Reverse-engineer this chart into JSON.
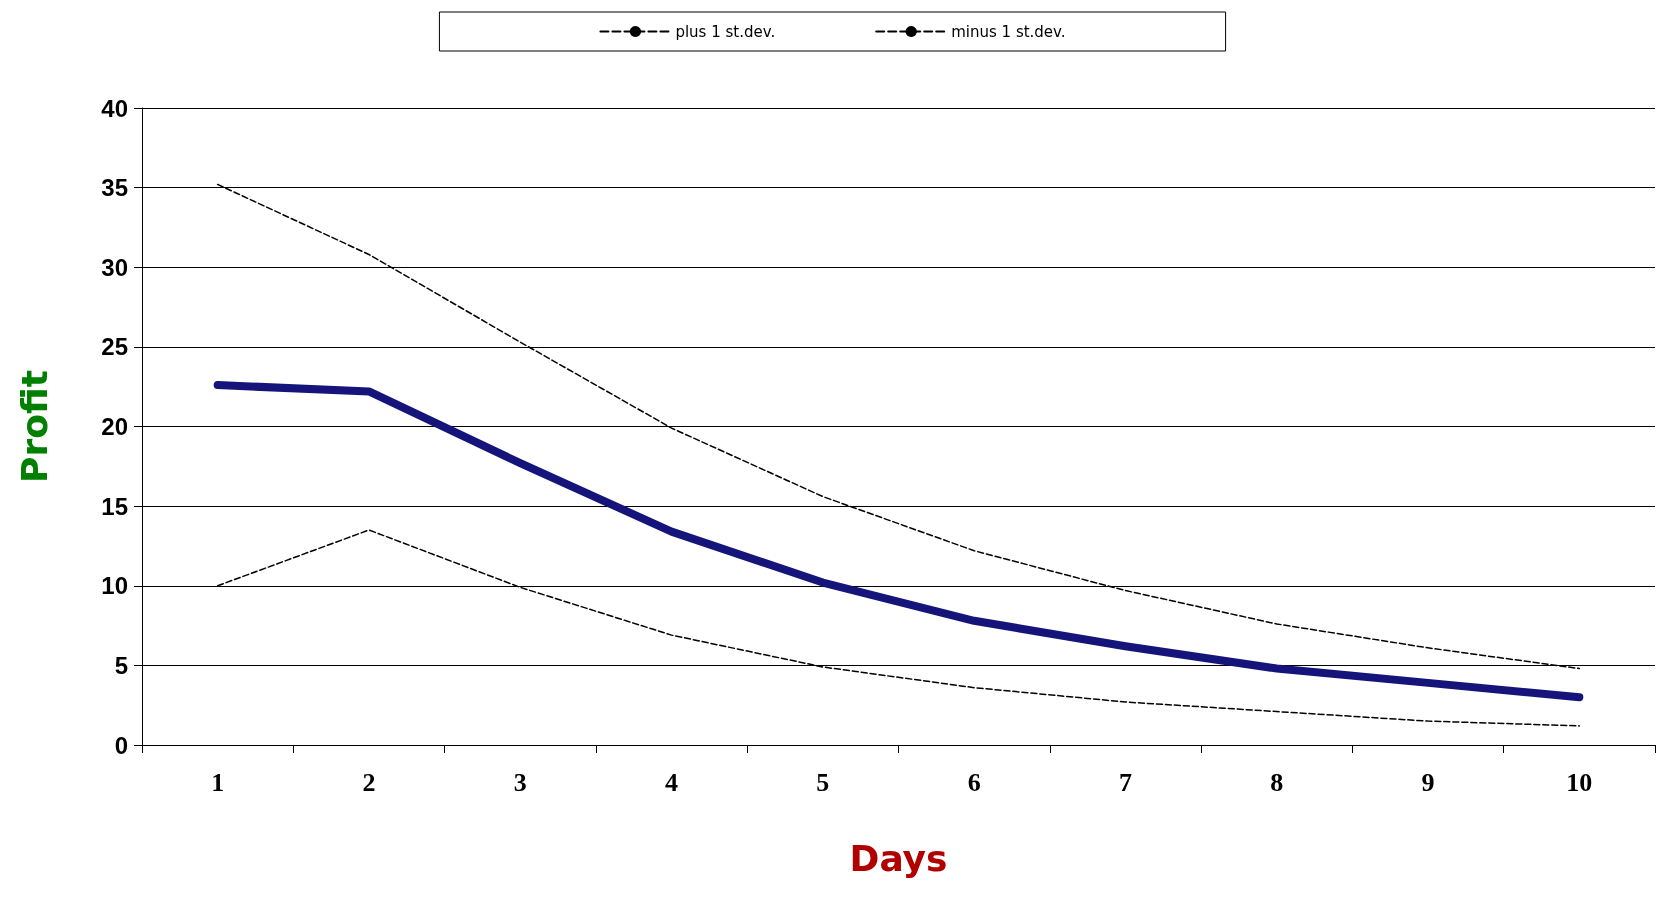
{
  "chart_data": {
    "type": "line",
    "xlabel": "Days",
    "ylabel": "Profit",
    "categories": [
      "1",
      "2",
      "3",
      "4",
      "5",
      "6",
      "7",
      "8",
      "9",
      "10"
    ],
    "series": [
      {
        "color": "#14147a",
        "values": [
          22.6,
          22.2,
          17.7,
          13.4,
          10.2,
          7.8,
          6.2,
          4.8,
          3.9,
          3.0
        ]
      },
      {
        "name": "plus 1 st.dev.",
        "color": "#000000",
        "line_style": "dashed",
        "values": [
          35.2,
          30.8,
          25.3,
          19.9,
          15.6,
          12.2,
          9.7,
          7.6,
          6.1,
          4.8
        ]
      },
      {
        "name": "minus 1 st.dev.",
        "color": "#000000",
        "line_style": "dashed",
        "values": [
          10.0,
          13.5,
          9.9,
          6.9,
          4.9,
          3.6,
          2.7,
          2.1,
          1.5,
          1.2
        ]
      }
    ],
    "ylim": [
      0,
      40
    ],
    "yticks": [
      0,
      5,
      10,
      15,
      20,
      25,
      30,
      35,
      40
    ],
    "grid": "y",
    "legend": "top",
    "marker": "none"
  }
}
